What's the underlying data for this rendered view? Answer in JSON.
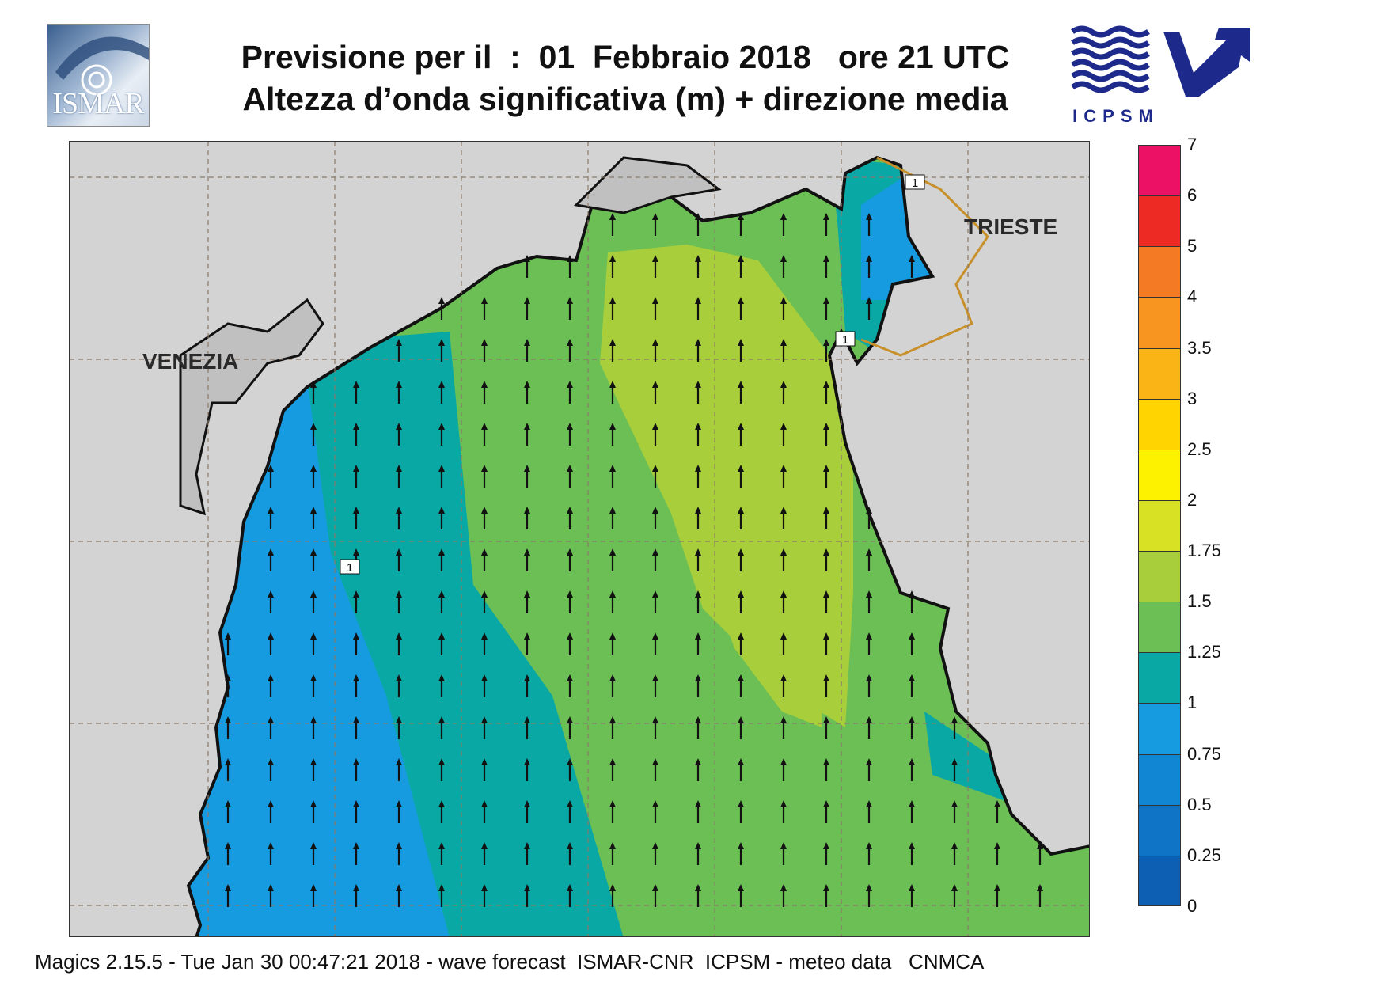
{
  "header": {
    "title_line1": "Previsione per il  :  01  Febbraio 2018   ore 21 UTC",
    "title_line2": "Altezza d’onda significativa (m) + direzione media"
  },
  "logos": {
    "left": {
      "text": "ISMAR",
      "icon": "ismar-logo-icon"
    },
    "right": {
      "text": "ICPSM",
      "icon": "icpsm-logo-icon"
    }
  },
  "map": {
    "cities": [
      {
        "id": "venezia",
        "label": "VENEZIA"
      },
      {
        "id": "trieste",
        "label": "TRIESTE"
      }
    ],
    "contour_label": "1",
    "arrow_direction": "north"
  },
  "legend": {
    "levels": [
      {
        "label": "0",
        "color": "#0d5fb4"
      },
      {
        "label": "0.25",
        "color": "#0f73c6"
      },
      {
        "label": "0.5",
        "color": "#1187d3"
      },
      {
        "label": "0.75",
        "color": "#169be0"
      },
      {
        "label": "1",
        "color": "#0aa8a4"
      },
      {
        "label": "1.25",
        "color": "#6cbf54"
      },
      {
        "label": "1.5",
        "color": "#a8ce3c"
      },
      {
        "label": "1.75",
        "color": "#d8e123"
      },
      {
        "label": "2",
        "color": "#fdf200"
      },
      {
        "label": "2.5",
        "color": "#ffd400"
      },
      {
        "label": "3",
        "color": "#fbb416"
      },
      {
        "label": "3.5",
        "color": "#f89520"
      },
      {
        "label": "4",
        "color": "#f47b24"
      },
      {
        "label": "5",
        "color": "#ee2a24"
      },
      {
        "label": "6",
        "color": "#ec1165"
      },
      {
        "label": "7",
        "color": ""
      }
    ]
  },
  "footer": {
    "text": "Magics 2.15.5 - Tue Jan 30 00:47:21 2018 - wave forecast  ISMAR-CNR  ICPSM - meteo data   CNMCA"
  }
}
